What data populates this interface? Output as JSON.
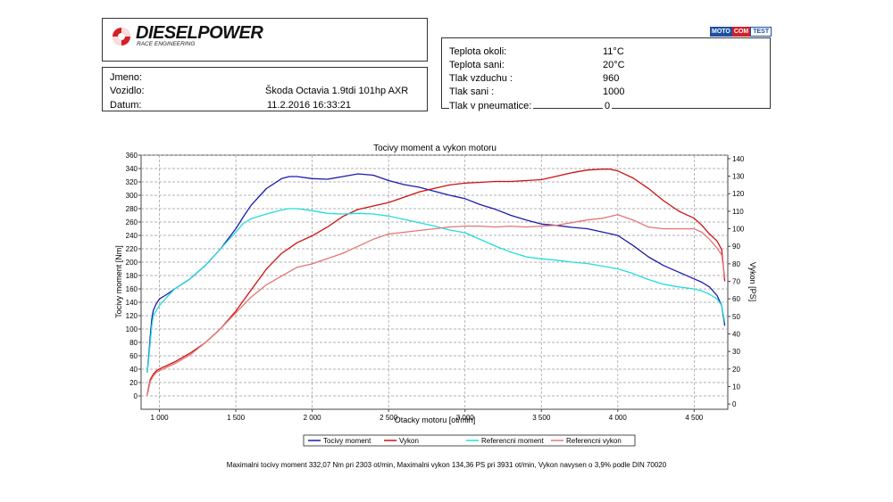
{
  "logo": {
    "name": "DIESELPOWER",
    "tagline": "RACE ENGINEERING"
  },
  "badge": {
    "part1": "MOTO",
    "part2": "COM",
    "part3": "TEST"
  },
  "info": [
    {
      "label": "Jmeno:",
      "value": ""
    },
    {
      "label": "Vozidlo:",
      "value": "Škoda Octavia 1.9tdi 101hp AXR"
    },
    {
      "label": "Datum:",
      "value": "11.2.2016 16:33:21"
    }
  ],
  "conditions": [
    {
      "label": "Teplota okoli:",
      "value": "11°C"
    },
    {
      "label": "Teplota sani:",
      "value": "20°C"
    },
    {
      "label": "Tlak vzduchu :",
      "value": "960"
    },
    {
      "label": "Tlak sani :",
      "value": "1000"
    },
    {
      "label": "Tlak v pneumatice:",
      "value": "0"
    }
  ],
  "footer": "Maximalni tocivy moment 332,07 Nm pri 2303 ot/min,  Maximalni vykon 134,36 PS pri 3931 ot/min,  Vykon navysen o 3,9% podle DIN 70020",
  "chart_data": {
    "type": "line",
    "title": "Tocivy moment a vykon motoru",
    "xlabel": "Otacky motoru [ot/min]",
    "ylabel": "Tocivy moment [Nm]",
    "y2label": "Vykon [PS]",
    "xlim": [
      880,
      4720
    ],
    "ylim": [
      -20,
      360
    ],
    "y2lim": [
      -3,
      142
    ],
    "x_ticks": [
      1000,
      1500,
      2000,
      2500,
      3000,
      3500,
      4000,
      4500
    ],
    "x_tick_labels": [
      "1 000",
      "1 500",
      "2 000",
      "2 500",
      "3 000",
      "3 500",
      "4 000",
      "4 500"
    ],
    "y_ticks": [
      0,
      20,
      40,
      60,
      80,
      100,
      120,
      140,
      160,
      180,
      200,
      220,
      240,
      260,
      280,
      300,
      320,
      340,
      360
    ],
    "y2_ticks": [
      0,
      10,
      20,
      30,
      40,
      50,
      60,
      70,
      80,
      90,
      100,
      110,
      120,
      130,
      140
    ],
    "grid": true,
    "legend_placement": "bottom",
    "series": [
      {
        "name": "Tocivy moment",
        "axis": "left",
        "color": "#1a1aaa",
        "x": [
          920,
          930,
          940,
          950,
          960,
          980,
          1000,
          1050,
          1100,
          1200,
          1300,
          1400,
          1500,
          1550,
          1600,
          1700,
          1800,
          1850,
          1900,
          2000,
          2100,
          2200,
          2300,
          2400,
          2500,
          2600,
          2700,
          2800,
          2900,
          3000,
          3100,
          3200,
          3300,
          3400,
          3500,
          3600,
          3700,
          3800,
          3900,
          4000,
          4100,
          4200,
          4300,
          4400,
          4500,
          4550,
          4600,
          4650,
          4680,
          4700
        ],
        "y": [
          35,
          60,
          90,
          115,
          128,
          138,
          145,
          152,
          160,
          175,
          195,
          220,
          250,
          268,
          285,
          310,
          325,
          328,
          328,
          325,
          324,
          328,
          332,
          330,
          322,
          316,
          312,
          306,
          300,
          295,
          286,
          279,
          270,
          263,
          257,
          255,
          252,
          250,
          245,
          240,
          225,
          208,
          195,
          185,
          175,
          170,
          163,
          150,
          135,
          105
        ]
      },
      {
        "name": "Vykon",
        "axis": "right",
        "color": "#cc1111",
        "x": [
          920,
          930,
          940,
          960,
          980,
          1000,
          1050,
          1100,
          1200,
          1300,
          1400,
          1500,
          1600,
          1700,
          1800,
          1900,
          2000,
          2100,
          2200,
          2300,
          2400,
          2500,
          2600,
          2700,
          2800,
          2900,
          3000,
          3100,
          3200,
          3300,
          3400,
          3500,
          3600,
          3700,
          3800,
          3900,
          3950,
          4000,
          4100,
          4200,
          4300,
          4400,
          4500,
          4550,
          4600,
          4650,
          4680,
          4700
        ],
        "y": [
          5,
          10,
          14,
          17,
          19,
          20,
          22,
          24,
          29,
          35,
          43,
          53,
          65,
          77,
          86,
          92,
          96,
          101,
          107,
          111,
          113,
          115,
          118,
          121,
          123,
          125,
          126,
          126.5,
          127,
          127,
          127.5,
          128,
          130,
          132,
          133.5,
          134,
          134,
          133,
          129,
          123,
          116,
          110,
          106,
          102,
          97,
          93,
          88,
          70
        ]
      },
      {
        "name": "Referencni moment",
        "axis": "left",
        "color": "#22dddd",
        "x": [
          920,
          930,
          940,
          950,
          960,
          980,
          1000,
          1050,
          1100,
          1200,
          1300,
          1400,
          1500,
          1550,
          1600,
          1700,
          1800,
          1850,
          1900,
          2000,
          2100,
          2200,
          2300,
          2400,
          2500,
          2600,
          2700,
          2800,
          2900,
          3000,
          3100,
          3200,
          3300,
          3400,
          3500,
          3600,
          3700,
          3800,
          3900,
          4000,
          4100,
          4200,
          4300,
          4400,
          4500,
          4550,
          4600,
          4650,
          4680,
          4700
        ],
        "y": [
          35,
          55,
          80,
          105,
          120,
          128,
          135,
          148,
          160,
          175,
          195,
          220,
          245,
          258,
          265,
          272,
          278,
          280,
          280,
          277,
          273,
          272,
          273,
          272,
          269,
          264,
          259,
          254,
          248,
          244,
          234,
          224,
          215,
          208,
          205,
          203,
          200,
          198,
          194,
          190,
          183,
          174,
          167,
          163,
          160,
          157,
          152,
          145,
          135,
          110
        ]
      },
      {
        "name": "Referencni vykon",
        "axis": "right",
        "color": "#e67474",
        "x": [
          920,
          930,
          940,
          960,
          980,
          1000,
          1050,
          1100,
          1200,
          1300,
          1400,
          1500,
          1600,
          1700,
          1800,
          1900,
          2000,
          2100,
          2200,
          2300,
          2400,
          2500,
          2600,
          2700,
          2800,
          2900,
          3000,
          3100,
          3200,
          3300,
          3400,
          3500,
          3600,
          3700,
          3800,
          3900,
          4000,
          4100,
          4200,
          4300,
          4400,
          4500,
          4550,
          4600,
          4650,
          4680,
          4700
        ],
        "y": [
          5,
          9,
          13,
          16,
          18,
          19,
          21,
          23,
          28,
          35,
          43,
          52,
          61,
          68,
          73,
          78,
          80,
          83,
          86,
          90,
          94,
          97,
          98,
          99,
          100,
          101,
          101.5,
          101.5,
          101,
          101.5,
          101,
          101.5,
          102,
          103.5,
          105,
          106,
          108,
          105,
          101,
          100,
          100,
          100,
          98,
          94,
          89,
          85,
          72
        ]
      }
    ]
  }
}
